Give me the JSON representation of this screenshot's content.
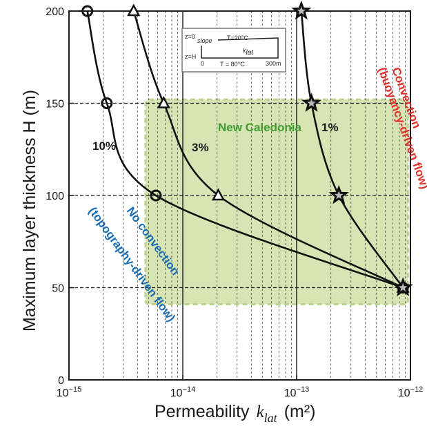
{
  "chart_data": {
    "type": "line",
    "xlabel": "Permeability",
    "xlabel_symbol": "k",
    "xlabel_subscript": "lat",
    "xlabel_unit": "(m²)",
    "ylabel": "Maximum layer thickness  H  (m)",
    "xscale": "log",
    "xlim": [
      1e-15,
      1e-12
    ],
    "ylim": [
      0,
      200
    ],
    "grid": true,
    "x_ticks": [
      {
        "base": "10",
        "exp": "−15",
        "value": 1e-15
      },
      {
        "base": "10",
        "exp": "−14",
        "value": 1e-14
      },
      {
        "base": "10",
        "exp": "−13",
        "value": 1e-13
      },
      {
        "base": "10",
        "exp": "−12",
        "value": 1e-12
      }
    ],
    "y_ticks": [
      "0",
      "50",
      "100",
      "150",
      "200"
    ],
    "y_tick_values": [
      0,
      50,
      100,
      150,
      200
    ],
    "series": [
      {
        "name": "10%",
        "marker": "circle",
        "points": [
          [
            1.45e-15,
            200
          ],
          [
            2.15e-15,
            150
          ],
          [
            5.8e-15,
            100
          ],
          [
            8.6e-13,
            50
          ]
        ]
      },
      {
        "name": "3%",
        "marker": "triangle",
        "points": [
          [
            3.7e-15,
            200
          ],
          [
            6.8e-15,
            150
          ],
          [
            2.05e-14,
            100
          ],
          [
            8.6e-13,
            50
          ]
        ]
      },
      {
        "name": "1%",
        "marker": "star",
        "points": [
          [
            1.1e-13,
            200
          ],
          [
            1.35e-13,
            150
          ],
          [
            2.35e-13,
            100
          ],
          [
            8.6e-13,
            50
          ]
        ]
      }
    ],
    "region": {
      "label": "New Caledonia",
      "color": "#d5e4b2",
      "edge_color": "#b9d08b",
      "x_range": [
        4.7e-15,
        9.5e-13
      ],
      "y_range": [
        41,
        152
      ]
    },
    "annotations": {
      "convection_line1": "Convection",
      "convection_line2": "(buoyancy-driven flow)",
      "convection_color": "#e0312b",
      "no_convection_line1": "No convection",
      "no_convection_line2": "(topography-driven flow)",
      "no_convection_color": "#1b6db3",
      "new_caledonia_color": "#3f9a2e"
    },
    "inset": {
      "z0": "z=0",
      "slope": "slope",
      "top_temp": "T=20°C",
      "k_symbol": "k",
      "k_sub": "lat",
      "zH": "z=H",
      "origin": "0",
      "bottom_temp": "T = 80°C",
      "length": "300m"
    }
  }
}
